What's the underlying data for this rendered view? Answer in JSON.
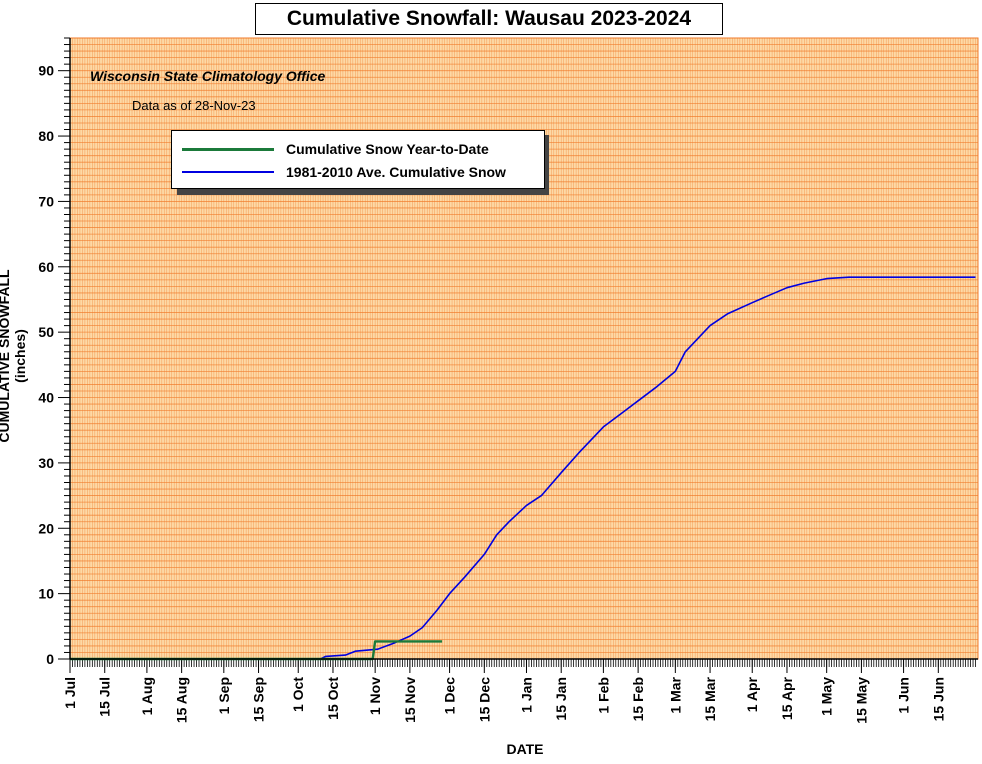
{
  "title": "Cumulative Snowfall: Wausau 2023-2024",
  "source": "Wisconsin State Climatology Office",
  "as_of": "Data as of 28-Nov-23",
  "colors": {
    "background": "#fdd9a6",
    "grid": "#f07a2a",
    "ytd": "#1b7a3a",
    "avg": "#0000e0"
  },
  "chart_data": {
    "type": "line",
    "title": "Cumulative Snowfall: Wausau 2023-2024",
    "xlabel": "DATE",
    "ylabel": "CUMULATIVE SNOWFALL (inches)",
    "ylim": [
      0,
      95
    ],
    "yticks": [
      0,
      10,
      20,
      30,
      40,
      50,
      60,
      70,
      80,
      90
    ],
    "xlim": [
      "2023-07-01",
      "2024-06-30"
    ],
    "xticks": [
      {
        "date": "2023-07-01",
        "label": "1 Jul"
      },
      {
        "date": "2023-07-15",
        "label": "15 Jul"
      },
      {
        "date": "2023-08-01",
        "label": "1 Aug"
      },
      {
        "date": "2023-08-15",
        "label": "15 Aug"
      },
      {
        "date": "2023-09-01",
        "label": "1 Sep"
      },
      {
        "date": "2023-09-15",
        "label": "15 Sep"
      },
      {
        "date": "2023-10-01",
        "label": "1 Oct"
      },
      {
        "date": "2023-10-15",
        "label": "15 Oct"
      },
      {
        "date": "2023-11-01",
        "label": "1 Nov"
      },
      {
        "date": "2023-11-15",
        "label": "15 Nov"
      },
      {
        "date": "2023-12-01",
        "label": "1 Dec"
      },
      {
        "date": "2023-12-15",
        "label": "15 Dec"
      },
      {
        "date": "2024-01-01",
        "label": "1 Jan"
      },
      {
        "date": "2024-01-15",
        "label": "15 Jan"
      },
      {
        "date": "2024-02-01",
        "label": "1 Feb"
      },
      {
        "date": "2024-02-15",
        "label": "15 Feb"
      },
      {
        "date": "2024-03-01",
        "label": "1 Mar"
      },
      {
        "date": "2024-03-15",
        "label": "15 Mar"
      },
      {
        "date": "2024-04-01",
        "label": "1 Apr"
      },
      {
        "date": "2024-04-15",
        "label": "15 Apr"
      },
      {
        "date": "2024-05-01",
        "label": "1 May"
      },
      {
        "date": "2024-05-15",
        "label": "15 May"
      },
      {
        "date": "2024-06-01",
        "label": "1 Jun"
      },
      {
        "date": "2024-06-15",
        "label": "15 Jun"
      }
    ],
    "grid": true,
    "legend": "top-left",
    "series": [
      {
        "name": "Cumulative Snow Year-to-Date",
        "color": "#1b7a3a",
        "points": [
          [
            "2023-07-01",
            0
          ],
          [
            "2023-10-31",
            0
          ],
          [
            "2023-11-01",
            2.7
          ],
          [
            "2023-11-28",
            2.7
          ]
        ]
      },
      {
        "name": "1981-2010 Ave. Cumulative Snow",
        "color": "#0000e0",
        "points": [
          [
            "2023-07-01",
            0
          ],
          [
            "2023-10-10",
            0
          ],
          [
            "2023-10-12",
            0.4
          ],
          [
            "2023-10-20",
            0.6
          ],
          [
            "2023-10-24",
            1.2
          ],
          [
            "2023-11-02",
            1.5
          ],
          [
            "2023-11-09",
            2.5
          ],
          [
            "2023-11-15",
            3.5
          ],
          [
            "2023-11-20",
            4.8
          ],
          [
            "2023-11-26",
            7.5
          ],
          [
            "2023-12-01",
            10.0
          ],
          [
            "2023-12-07",
            12.5
          ],
          [
            "2023-12-15",
            16.0
          ],
          [
            "2023-12-20",
            19.0
          ],
          [
            "2023-12-25",
            21.0
          ],
          [
            "2024-01-01",
            23.5
          ],
          [
            "2024-01-07",
            25.0
          ],
          [
            "2024-01-15",
            28.5
          ],
          [
            "2024-01-22",
            31.5
          ],
          [
            "2024-02-01",
            35.5
          ],
          [
            "2024-02-08",
            37.5
          ],
          [
            "2024-02-15",
            39.5
          ],
          [
            "2024-02-22",
            41.5
          ],
          [
            "2024-03-01",
            44.0
          ],
          [
            "2024-03-05",
            47.0
          ],
          [
            "2024-03-10",
            49.0
          ],
          [
            "2024-03-15",
            51.0
          ],
          [
            "2024-03-22",
            52.8
          ],
          [
            "2024-04-01",
            54.5
          ],
          [
            "2024-04-07",
            55.5
          ],
          [
            "2024-04-15",
            56.8
          ],
          [
            "2024-04-22",
            57.5
          ],
          [
            "2024-05-01",
            58.2
          ],
          [
            "2024-05-10",
            58.4
          ],
          [
            "2024-06-30",
            58.4
          ]
        ]
      }
    ]
  }
}
